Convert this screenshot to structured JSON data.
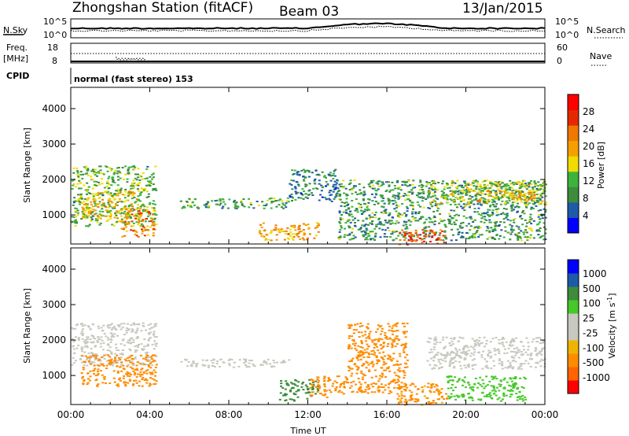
{
  "header": {
    "station": "Zhongshan Station (fitACF)",
    "beam": "Beam 03",
    "date": "13/Jan/2015"
  },
  "status_panel": {
    "nsky_label": "N.Sky",
    "nsky_top": "10^5",
    "nsky_bottom": "10^0",
    "nsearch_label": "N.Search",
    "nsearch_top": "10^5",
    "nsearch_bottom": "10^0",
    "freq_label_1": "Freq.",
    "freq_label_2": "[MHz]",
    "freq_top": "18",
    "freq_bottom": "8",
    "nave_label": "Nave",
    "nave_top": "60",
    "nave_bottom": "0",
    "cpid_label": "CPID",
    "cpid_text": "normal (fast stereo) 153"
  },
  "colors": {
    "power_scale": [
      "#0000ff",
      "#1e5aa8",
      "#3c8c3c",
      "#3cb43c",
      "#f0dc00",
      "#f5a000",
      "#f07800",
      "#e62800",
      "#ff0000"
    ],
    "velocity_scale": [
      "#ff0000",
      "#ff6400",
      "#ff8c00",
      "#f0b400",
      "#c8c8c0",
      "#c8c8c0",
      "#46c828",
      "#3c8c3c",
      "#1e5aa8",
      "#0000ff"
    ]
  },
  "chart_data": [
    {
      "type": "heatmap",
      "panel": "power",
      "ylabel": "Slant Range [km]",
      "y_ticks": [
        "1000",
        "2000",
        "3000",
        "4000"
      ],
      "ylim": [
        180,
        4600
      ],
      "x_ticks": [
        "00:00",
        "04:00",
        "08:00",
        "12:00",
        "16:00",
        "20:00",
        "00:00"
      ],
      "colorbar_label": "Power [dB]",
      "colorbar_ticks": [
        "4",
        "8",
        "12",
        "16",
        "20",
        "24",
        "28"
      ],
      "color_range": [
        0,
        32
      ],
      "regions": [
        {
          "t": [
            0.0,
            4.3
          ],
          "r": [
            700,
            2400
          ],
          "level": 12
        },
        {
          "t": [
            0.5,
            3.5
          ],
          "r": [
            900,
            1700
          ],
          "level": 18
        },
        {
          "t": [
            2.5,
            4.2
          ],
          "r": [
            400,
            1200
          ],
          "level": 22
        },
        {
          "t": [
            5.5,
            11.0
          ],
          "r": [
            1200,
            1500
          ],
          "level": 10
        },
        {
          "t": [
            9.5,
            12.5
          ],
          "r": [
            300,
            800
          ],
          "level": 20
        },
        {
          "t": [
            11.0,
            13.5
          ],
          "r": [
            1400,
            2300
          ],
          "level": 8
        },
        {
          "t": [
            13.5,
            24.0
          ],
          "r": [
            300,
            2000
          ],
          "level": 10
        },
        {
          "t": [
            16.5,
            19.0
          ],
          "r": [
            180,
            600
          ],
          "level": 26
        },
        {
          "t": [
            18.0,
            24.0
          ],
          "r": [
            1300,
            2000
          ],
          "level": 14
        },
        {
          "t": [
            20.5,
            23.5
          ],
          "r": [
            1400,
            1700
          ],
          "level": 20
        }
      ]
    },
    {
      "type": "heatmap",
      "panel": "velocity",
      "ylabel": "Slant Range [km]",
      "y_ticks": [
        "1000",
        "2000",
        "3000",
        "4000"
      ],
      "ylim": [
        180,
        4600
      ],
      "x_ticks": [
        "00:00",
        "04:00",
        "08:00",
        "12:00",
        "16:00",
        "20:00",
        "00:00"
      ],
      "xlabel": "Time UT",
      "colorbar_label": "Velocity [m s^-1]",
      "colorbar_ticks": [
        "1000",
        "500",
        "100",
        "25",
        "-25",
        "-100",
        "-500",
        "-1000"
      ],
      "regions": [
        {
          "t": [
            0.0,
            4.3
          ],
          "r": [
            1300,
            2500
          ],
          "velocity": 0
        },
        {
          "t": [
            0.5,
            4.3
          ],
          "r": [
            700,
            1600
          ],
          "velocity": -300
        },
        {
          "t": [
            5.5,
            11.0
          ],
          "r": [
            1250,
            1500
          ],
          "velocity": 0
        },
        {
          "t": [
            10.5,
            12.5
          ],
          "r": [
            300,
            900
          ],
          "velocity": 300
        },
        {
          "t": [
            12.0,
            14.0
          ],
          "r": [
            400,
            1000
          ],
          "velocity": -300
        },
        {
          "t": [
            14.0,
            17.0
          ],
          "r": [
            500,
            2500
          ],
          "velocity": -200
        },
        {
          "t": [
            16.5,
            19.0
          ],
          "r": [
            180,
            800
          ],
          "velocity": -150
        },
        {
          "t": [
            18.0,
            24.0
          ],
          "r": [
            1200,
            2100
          ],
          "velocity": 0
        },
        {
          "t": [
            19.0,
            23.0
          ],
          "r": [
            300,
            1000
          ],
          "velocity": 60
        }
      ]
    }
  ]
}
